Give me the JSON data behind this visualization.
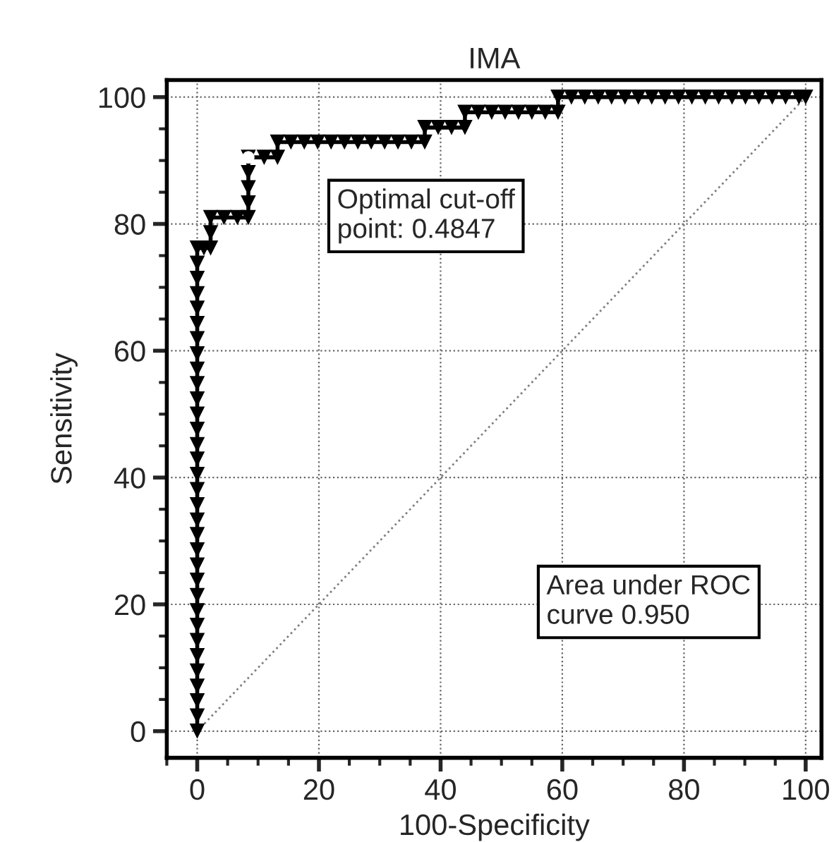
{
  "chart_data": {
    "type": "line",
    "title": "IMA",
    "xlabel": "100-Specificity",
    "ylabel": "Sensitivity",
    "xlim": [
      -5,
      102.6
    ],
    "ylim": [
      -4.2,
      102.7
    ],
    "xticks": [
      0,
      20,
      40,
      60,
      80,
      100
    ],
    "yticks": [
      0,
      20,
      40,
      60,
      80,
      100
    ],
    "grid": true,
    "marker": "triangle",
    "line_style": "solid",
    "series": [
      {
        "color": "#000000",
        "x": [
          0,
          0,
          0,
          0,
          0,
          0,
          0,
          0,
          0,
          0,
          0,
          0,
          0,
          0,
          0,
          0,
          0,
          0,
          0,
          0,
          0,
          0,
          0,
          0,
          0,
          0,
          0,
          0,
          0,
          0,
          0,
          0,
          0,
          1.1,
          2.2,
          2.2,
          2.2,
          4.4,
          6.6,
          8.4,
          8.4,
          8.4,
          8.4,
          8.4,
          11.0,
          13.2,
          13.2,
          15.4,
          17.6,
          19.8,
          22.0,
          24.2,
          26.4,
          28.6,
          30.8,
          33.0,
          35.2,
          37.4,
          37.4,
          39.6,
          41.8,
          44.0,
          44.0,
          46.2,
          48.4,
          50.6,
          52.8,
          55.0,
          57.2,
          59.3,
          59.3,
          61.5,
          63.7,
          65.9,
          68.1,
          70.3,
          72.5,
          74.7,
          76.9,
          79.1,
          81.3,
          83.5,
          85.7,
          87.9,
          90.1,
          92.3,
          94.5,
          96.7,
          98.9,
          100
        ],
        "values": [
          0,
          2.4,
          4.8,
          7.1,
          9.5,
          11.9,
          14.3,
          16.7,
          19.0,
          21.4,
          23.8,
          26.2,
          28.6,
          31.0,
          33.3,
          35.7,
          38.1,
          40.5,
          42.9,
          45.2,
          47.6,
          50.0,
          52.4,
          54.8,
          57.1,
          59.5,
          61.9,
          64.3,
          66.7,
          69.0,
          71.4,
          73.8,
          76.2,
          76.2,
          76.2,
          78.6,
          81.0,
          81.0,
          81.0,
          81.0,
          83.3,
          85.7,
          88.1,
          90.5,
          90.5,
          90.5,
          92.9,
          92.9,
          92.9,
          92.9,
          92.9,
          92.9,
          92.9,
          92.9,
          92.9,
          92.9,
          92.9,
          92.9,
          95.2,
          95.2,
          95.2,
          95.2,
          97.6,
          97.6,
          97.6,
          97.6,
          97.6,
          97.6,
          97.6,
          97.6,
          100,
          100,
          100,
          100,
          100,
          100,
          100,
          100,
          100,
          100,
          100,
          100,
          100,
          100,
          100,
          100,
          100,
          100,
          100,
          100
        ]
      },
      {
        "type": "line",
        "color": "#808080",
        "marker": "none",
        "line_style": "dotted",
        "x": [
          0,
          100
        ],
        "values": [
          0,
          100
        ]
      },
      {
        "type": "scatter",
        "color": "#ffffff",
        "marker": "circle",
        "x": [
          8.4
        ],
        "values": [
          90.5
        ]
      }
    ],
    "annotations": [
      "Optimal cut-off\npoint: 0.4847",
      "Area under ROC\ncurve 0.950"
    ]
  }
}
